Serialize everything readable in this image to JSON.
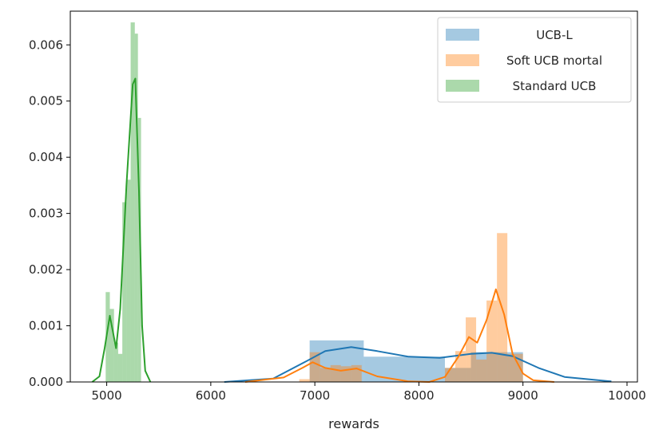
{
  "chart_data": {
    "type": "histogram",
    "title": "",
    "xlabel": "rewards",
    "ylabel": "",
    "xlim": [
      4650,
      10100
    ],
    "ylim": [
      0,
      0.0066
    ],
    "x_ticks": [
      5000,
      6000,
      7000,
      8000,
      9000,
      10000
    ],
    "y_ticks": [
      0.0,
      0.001,
      0.002,
      0.003,
      0.004,
      0.005,
      0.006
    ],
    "y_tick_labels": [
      "0.000",
      "0.001",
      "0.002",
      "0.003",
      "0.004",
      "0.005",
      "0.006"
    ],
    "grid": false,
    "legend": {
      "placement": "upper-right"
    },
    "series": [
      {
        "name": "UCB-L",
        "color": "#1f77b4",
        "bins": [
          {
            "x0": 6950,
            "x1": 7470,
            "y": 0.00074
          },
          {
            "x0": 7470,
            "x1": 8000,
            "y": 0.00045
          },
          {
            "x0": 8000,
            "x1": 8250,
            "y": 0.00045
          },
          {
            "x0": 8250,
            "x1": 8500,
            "y": 0.00025
          },
          {
            "x0": 8500,
            "x1": 9000,
            "y": 0.00053
          }
        ],
        "kde": [
          [
            6130,
            0.0
          ],
          [
            6600,
            6e-05
          ],
          [
            6900,
            0.00035
          ],
          [
            7100,
            0.00055
          ],
          [
            7350,
            0.00062
          ],
          [
            7600,
            0.00055
          ],
          [
            7900,
            0.00045
          ],
          [
            8200,
            0.00043
          ],
          [
            8500,
            0.0005
          ],
          [
            8700,
            0.00052
          ],
          [
            8900,
            0.00046
          ],
          [
            9150,
            0.00025
          ],
          [
            9400,
            9e-05
          ],
          [
            9850,
            1e-05
          ]
        ]
      },
      {
        "name": "Soft UCB mortal",
        "color": "#ff7f0e",
        "bins": [
          {
            "x0": 6850,
            "x1": 6950,
            "y": 5e-05
          },
          {
            "x0": 6950,
            "x1": 7050,
            "y": 0.00053
          },
          {
            "x0": 7050,
            "x1": 7150,
            "y": 0.00025
          },
          {
            "x0": 7150,
            "x1": 7250,
            "y": 0.0003
          },
          {
            "x0": 7250,
            "x1": 7350,
            "y": 0.00028
          },
          {
            "x0": 7350,
            "x1": 7450,
            "y": 0.0003
          },
          {
            "x0": 8250,
            "x1": 8350,
            "y": 0.00025
          },
          {
            "x0": 8350,
            "x1": 8450,
            "y": 0.00055
          },
          {
            "x0": 8450,
            "x1": 8550,
            "y": 0.00115
          },
          {
            "x0": 8550,
            "x1": 8650,
            "y": 0.0004
          },
          {
            "x0": 8650,
            "x1": 8750,
            "y": 0.00145
          },
          {
            "x0": 8750,
            "x1": 8850,
            "y": 0.00265
          },
          {
            "x0": 8850,
            "x1": 9000,
            "y": 0.0005
          }
        ],
        "kde": [
          [
            6330,
            0.0
          ],
          [
            6700,
            8e-05
          ],
          [
            6880,
            0.00025
          ],
          [
            6980,
            0.00035
          ],
          [
            7100,
            0.00025
          ],
          [
            7250,
            0.0002
          ],
          [
            7400,
            0.00024
          ],
          [
            7600,
            0.0001
          ],
          [
            7900,
            1e-05
          ],
          [
            8100,
            0.0
          ],
          [
            8250,
            9e-05
          ],
          [
            8380,
            0.00045
          ],
          [
            8480,
            0.0008
          ],
          [
            8560,
            0.0007
          ],
          [
            8650,
            0.0011
          ],
          [
            8740,
            0.00165
          ],
          [
            8820,
            0.0012
          ],
          [
            8900,
            0.0005
          ],
          [
            9000,
            0.00015
          ],
          [
            9100,
            3e-05
          ],
          [
            9300,
            0.0
          ]
        ]
      },
      {
        "name": "Standard UCB",
        "color": "#2ca02c",
        "bins": [
          {
            "x0": 4990,
            "x1": 5030,
            "y": 0.0016
          },
          {
            "x0": 5030,
            "x1": 5070,
            "y": 0.0013
          },
          {
            "x0": 5070,
            "x1": 5110,
            "y": 0.0007
          },
          {
            "x0": 5110,
            "x1": 5150,
            "y": 0.0005
          },
          {
            "x0": 5150,
            "x1": 5190,
            "y": 0.0032
          },
          {
            "x0": 5190,
            "x1": 5230,
            "y": 0.0036
          },
          {
            "x0": 5230,
            "x1": 5270,
            "y": 0.0064
          },
          {
            "x0": 5270,
            "x1": 5300,
            "y": 0.0062
          },
          {
            "x0": 5300,
            "x1": 5330,
            "y": 0.0047
          }
        ],
        "kde": [
          [
            4860,
            0.0
          ],
          [
            4930,
            0.0001
          ],
          [
            4980,
            0.0006
          ],
          [
            5030,
            0.00118
          ],
          [
            5090,
            0.0006
          ],
          [
            5130,
            0.0013
          ],
          [
            5190,
            0.0035
          ],
          [
            5250,
            0.0053
          ],
          [
            5275,
            0.0054
          ],
          [
            5310,
            0.0034
          ],
          [
            5340,
            0.001
          ],
          [
            5370,
            0.0002
          ],
          [
            5420,
            0.0
          ]
        ]
      }
    ]
  }
}
